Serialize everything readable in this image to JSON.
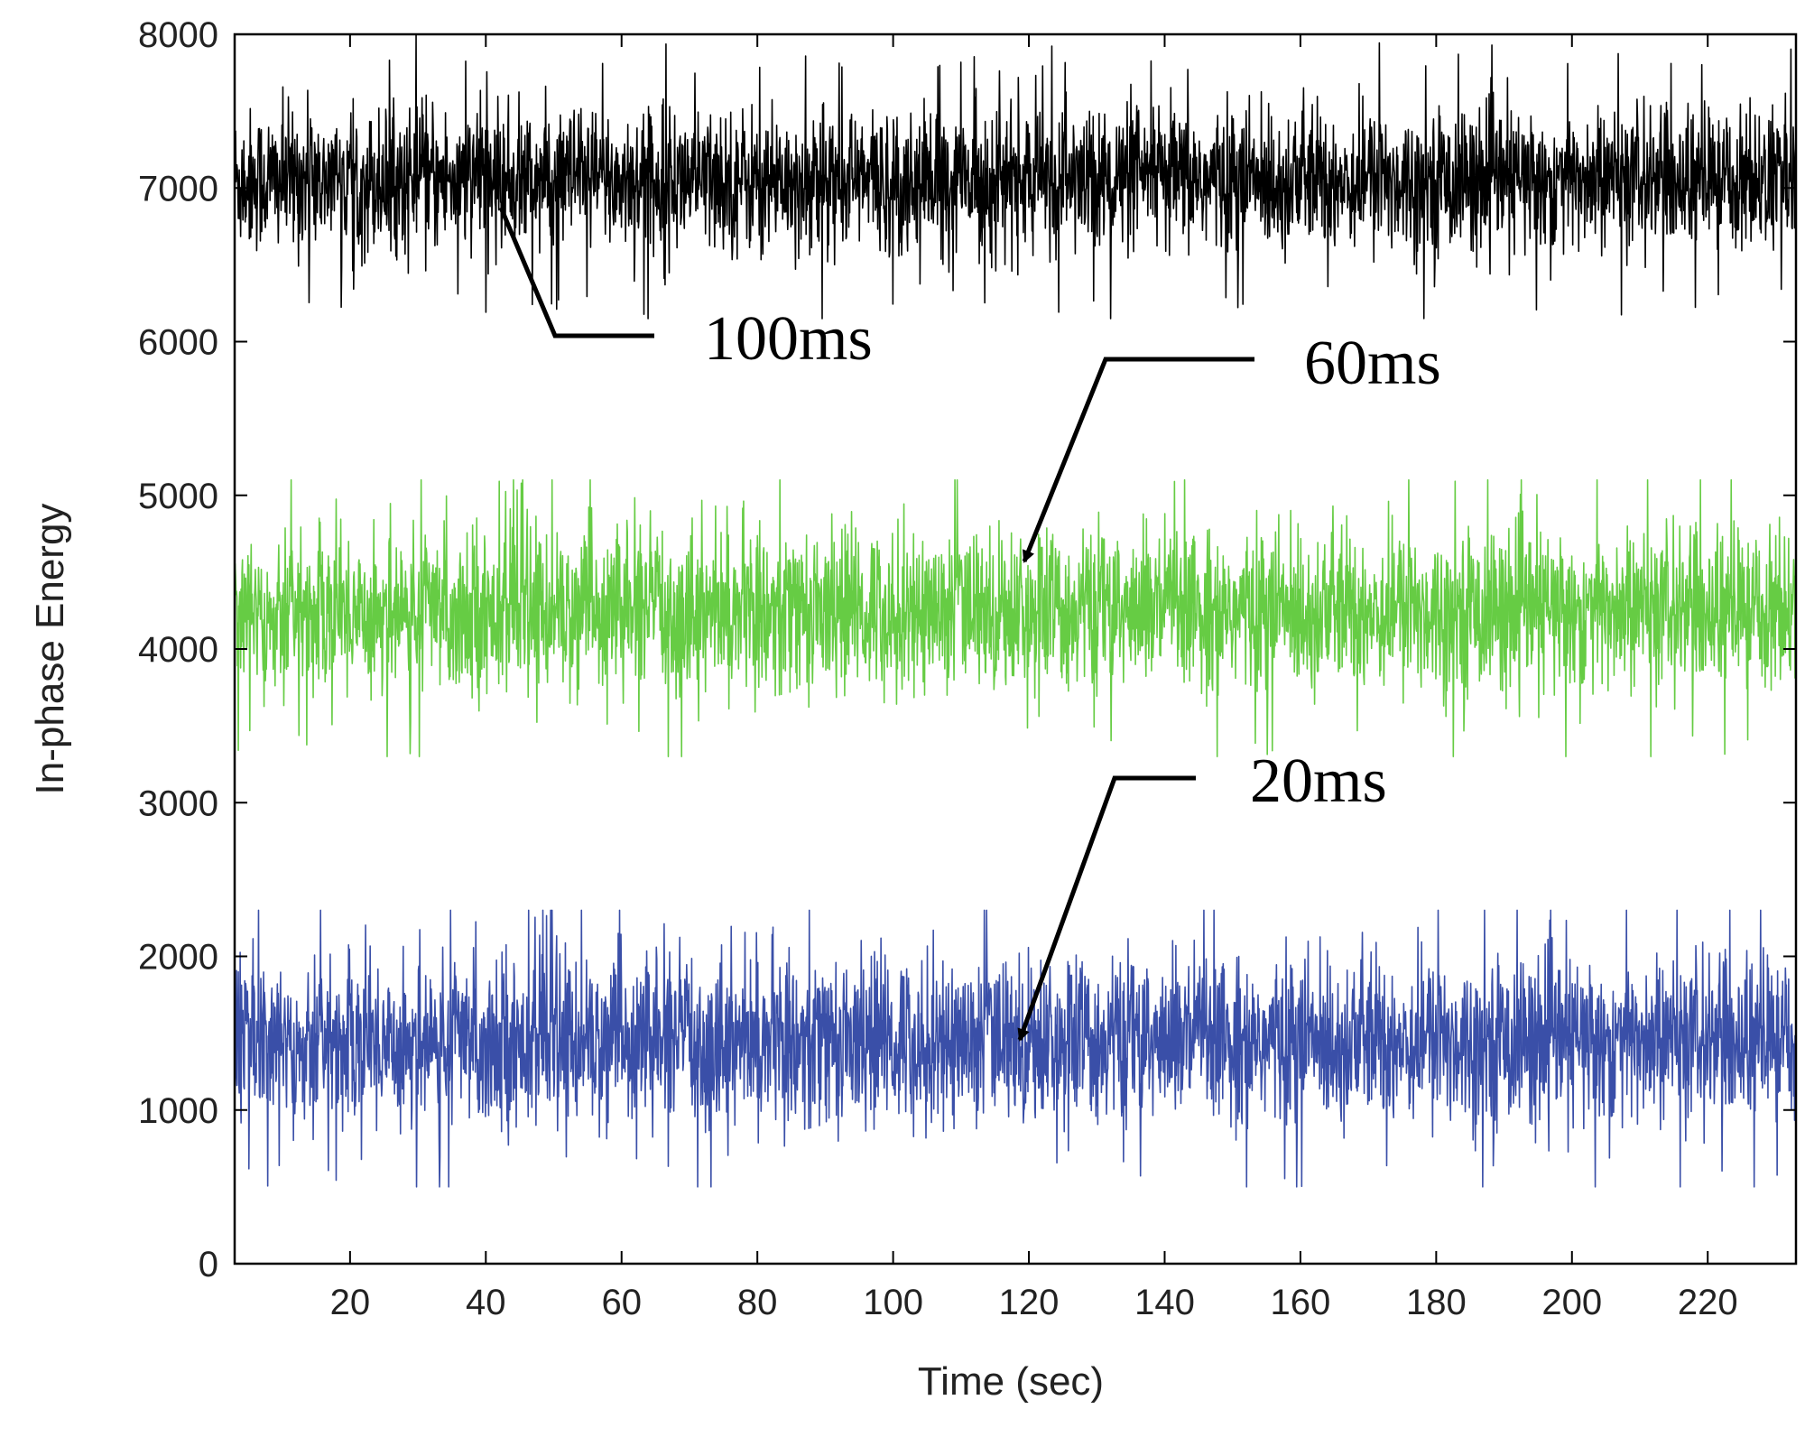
{
  "chart_data": {
    "type": "line",
    "title": "",
    "xlabel": "Time (sec)",
    "ylabel": "In-phase Energy",
    "xlim": [
      3,
      233
    ],
    "ylim": [
      0,
      8000
    ],
    "xticks": [
      20,
      40,
      60,
      80,
      100,
      120,
      140,
      160,
      180,
      200,
      220
    ],
    "yticks": [
      0,
      1000,
      2000,
      3000,
      4000,
      5000,
      6000,
      7000,
      8000
    ],
    "grid": false,
    "legend": "none",
    "series": [
      {
        "name": "100ms",
        "color": "#000000",
        "mean": 7050,
        "std": 230,
        "min": 6150,
        "max": 8000,
        "x_range": [
          3,
          233
        ]
      },
      {
        "name": "60ms",
        "color": "#66cc44",
        "mean": 4250,
        "std": 260,
        "min": 3300,
        "max": 5100,
        "x_range": [
          3,
          233
        ]
      },
      {
        "name": "20ms",
        "color": "#3a4fa8",
        "mean": 1450,
        "std": 270,
        "min": 500,
        "max": 2300,
        "x_range": [
          3,
          233
        ]
      }
    ],
    "annotations": [
      {
        "text": "100ms",
        "series": "100ms",
        "points_to": [
          43,
          6950
        ],
        "style": "line"
      },
      {
        "text": "60ms",
        "series": "60ms",
        "points_to": [
          118,
          4520
        ],
        "style": "arrow"
      },
      {
        "text": "20ms",
        "series": "20ms",
        "points_to": [
          117,
          1400
        ],
        "style": "arrow"
      }
    ]
  }
}
